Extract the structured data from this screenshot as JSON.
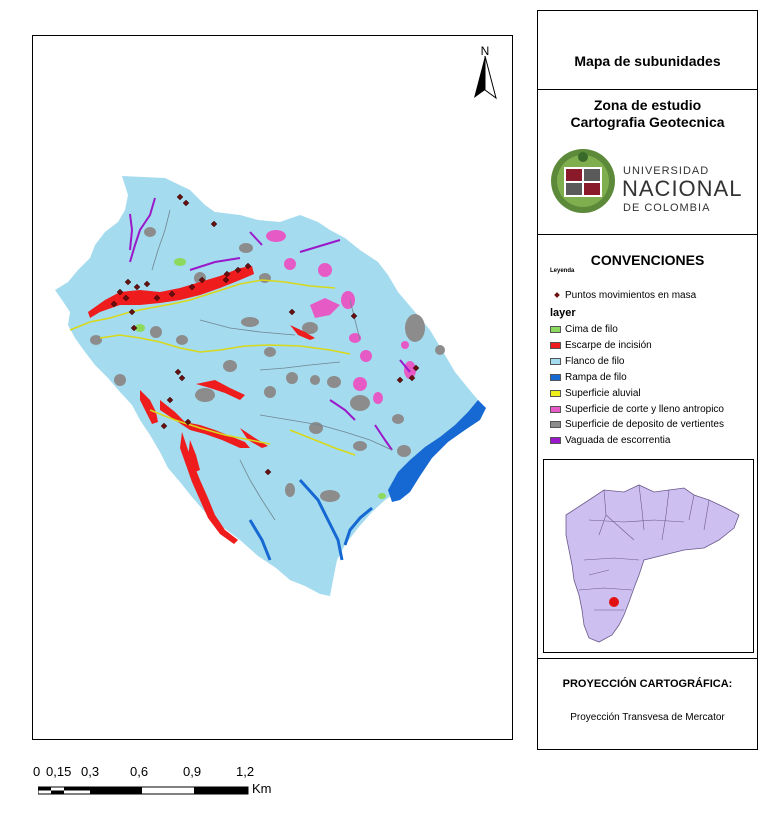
{
  "map": {
    "north_label": "N",
    "colors": {
      "background": "#ffffff",
      "flanco": "#a4dbee",
      "escarpe": "#ee1c1c",
      "cima": "#8cd95e",
      "rampa": "#1668d3",
      "aluvial": "#eeee1a",
      "corte": "#e65ac6",
      "deposito": "#8c8c8c",
      "vaguada": "#9a18c9",
      "puntos": "#6b0f0f"
    }
  },
  "panel": {
    "title": "Mapa de subunidades",
    "zone_line1": "Zona de estudio",
    "zone_line2": "Cartografia Geotecnica",
    "university": {
      "name_top": "UNIVERSIDAD",
      "name_main": "NACIONAL",
      "name_bottom": "DE COLOMBIA"
    },
    "conventions_title": "CONVENCIONES",
    "legend_small": "Leyenda",
    "points_label": "Puntos movimientos en masa",
    "layer_header": "layer",
    "layers": [
      {
        "label": "Cima de filo",
        "color": "#8cd95e"
      },
      {
        "label": "Escarpe de incisión",
        "color": "#ee1c1c"
      },
      {
        "label": "Flanco de filo",
        "color": "#a4dbee"
      },
      {
        "label": "Rampa de filo",
        "color": "#1668d3"
      },
      {
        "label": "Superficie aluvial",
        "color": "#eeee1a"
      },
      {
        "label": "Superficie de corte y lleno antropico",
        "color": "#e65ac6"
      },
      {
        "label": "Superficie de deposito de vertientes",
        "color": "#8c8c8c"
      },
      {
        "label": "Vaguada de escorrentia",
        "color": "#9a18c9"
      }
    ],
    "inset_colors": {
      "region": "#cdbff0",
      "marker": "#e11111"
    },
    "projection_title": "PROYECCIÓN CARTOGRÁFICA:",
    "projection_text": "Proyección Transvesa de Mercator"
  },
  "scale": {
    "labels": [
      "0",
      "0,15",
      "0,3",
      "0,6",
      "0,9",
      "1,2"
    ],
    "unit": "Km"
  }
}
